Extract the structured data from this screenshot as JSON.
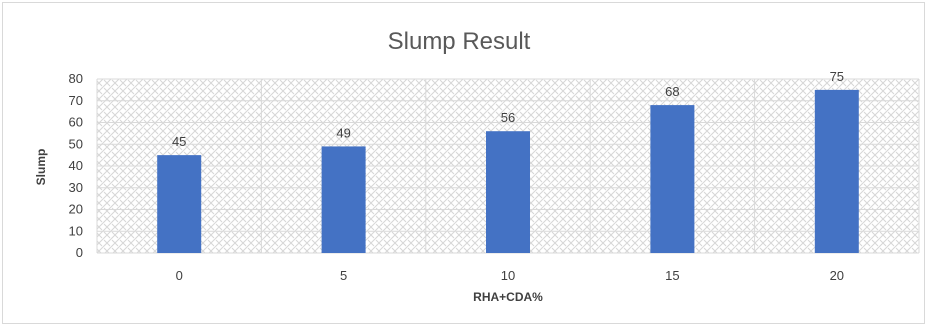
{
  "chart_data": {
    "type": "bar",
    "title": "Slump Result",
    "xlabel": "RHA+CDA%",
    "ylabel": "Slump",
    "categories": [
      "0",
      "5",
      "10",
      "15",
      "20"
    ],
    "values": [
      45,
      49,
      56,
      68,
      75
    ],
    "data_labels": [
      "45",
      "49",
      "56",
      "68",
      "75"
    ],
    "ylim": [
      0,
      80
    ],
    "yticks": [
      "0",
      "10",
      "20",
      "30",
      "40",
      "50",
      "60",
      "70",
      "80"
    ],
    "grid": true,
    "legend": "none",
    "colors": {
      "bar": "#4472c4",
      "plot_pattern": "#d6d6d6",
      "gridline": "#d9d9d9",
      "text": "#404040",
      "title": "#595959"
    }
  }
}
